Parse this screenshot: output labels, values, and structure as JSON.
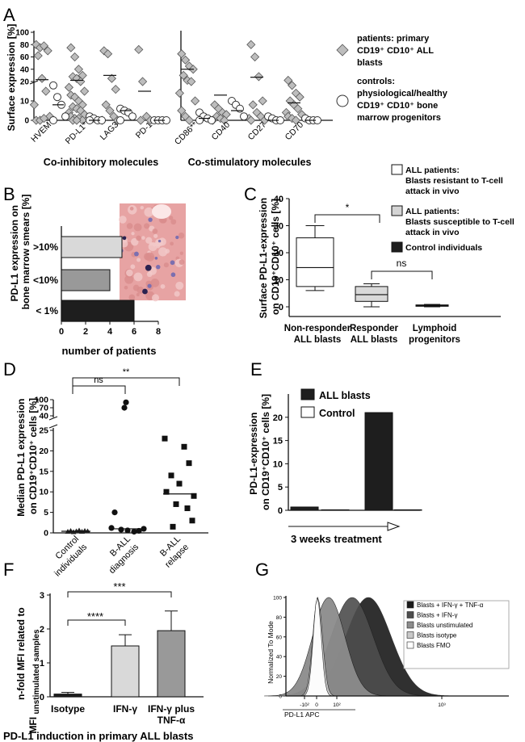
{
  "colors": {
    "dark": "#1e1e1e",
    "mid": "#999999",
    "light": "#d9d9d9",
    "white": "#ffffff",
    "diamond": "#bdbdbd"
  },
  "panels": {
    "A": "A",
    "B": "B",
    "C": "C",
    "D": "D",
    "E": "E",
    "F": "F",
    "G": "G"
  },
  "chart_data": [
    {
      "id": "A",
      "type": "scatter",
      "ylabel": "Surface expression [%]",
      "yticks": [
        "0",
        "10",
        "20",
        "40",
        "60",
        "80",
        "100"
      ],
      "categories": [
        "HVEM",
        "PD-L1*",
        "LAG3",
        "PD-1",
        "CD86**",
        "CD40",
        "CD27",
        "CD70"
      ],
      "groups": [
        "Co-inhibitory molecules",
        "Co-stimulatory molecules"
      ],
      "legend": [
        {
          "marker": "diamond",
          "lines": [
            "patients: primary",
            "CD19⁺ CD10⁺ ALL",
            "blasts"
          ]
        },
        {
          "marker": "circle",
          "lines": [
            "controls:",
            "physiological/healthy",
            "CD19⁺ CD10⁺ bone",
            "marrow progenitors"
          ]
        }
      ],
      "series": [
        {
          "name": "patients",
          "points": [
            [
              0,
              80
            ],
            [
              0,
              75
            ],
            [
              0,
              78
            ],
            [
              0,
              70
            ],
            [
              0,
              62
            ],
            [
              0,
              25
            ],
            [
              0,
              15
            ],
            [
              0,
              8
            ],
            [
              0,
              2
            ],
            [
              0,
              0
            ],
            [
              0,
              0
            ],
            [
              0,
              1
            ],
            [
              1,
              75
            ],
            [
              1,
              60
            ],
            [
              1,
              40
            ],
            [
              1,
              30
            ],
            [
              1,
              28
            ],
            [
              1,
              25
            ],
            [
              1,
              20
            ],
            [
              1,
              17
            ],
            [
              1,
              15
            ],
            [
              1,
              13
            ],
            [
              1,
              12
            ],
            [
              1,
              10
            ],
            [
              1,
              8
            ],
            [
              1,
              7
            ],
            [
              1,
              6
            ],
            [
              1,
              5
            ],
            [
              1,
              4
            ],
            [
              1,
              3
            ],
            [
              1,
              2
            ],
            [
              1,
              1
            ],
            [
              1,
              1
            ],
            [
              1,
              0
            ],
            [
              1,
              0
            ],
            [
              1,
              0
            ],
            [
              2,
              70
            ],
            [
              2,
              65
            ],
            [
              2,
              25
            ],
            [
              2,
              16
            ],
            [
              2,
              8
            ],
            [
              2,
              5
            ],
            [
              2,
              2
            ],
            [
              2,
              0
            ],
            [
              2,
              0
            ],
            [
              3,
              72
            ],
            [
              3,
              20
            ],
            [
              3,
              2
            ],
            [
              3,
              0
            ],
            [
              3,
              0
            ],
            [
              4,
              65
            ],
            [
              4,
              55
            ],
            [
              4,
              45
            ],
            [
              4,
              40
            ],
            [
              4,
              30
            ],
            [
              4,
              22
            ],
            [
              4,
              20
            ],
            [
              4,
              14
            ],
            [
              4,
              10
            ],
            [
              4,
              5
            ],
            [
              4,
              2
            ],
            [
              4,
              0
            ],
            [
              5,
              8
            ],
            [
              5,
              6
            ],
            [
              5,
              4
            ],
            [
              5,
              3
            ],
            [
              5,
              2
            ],
            [
              5,
              1
            ],
            [
              5,
              0
            ],
            [
              5,
              0
            ],
            [
              6,
              80
            ],
            [
              6,
              60
            ],
            [
              6,
              28
            ],
            [
              6,
              10
            ],
            [
              6,
              8
            ],
            [
              6,
              4
            ],
            [
              6,
              2
            ],
            [
              6,
              1
            ],
            [
              6,
              0
            ],
            [
              6,
              0
            ],
            [
              7,
              22
            ],
            [
              7,
              18
            ],
            [
              7,
              14
            ],
            [
              7,
              12
            ],
            [
              7,
              10
            ],
            [
              7,
              8
            ],
            [
              7,
              6
            ],
            [
              7,
              4
            ],
            [
              7,
              3
            ],
            [
              7,
              2
            ],
            [
              7,
              1
            ],
            [
              7,
              0
            ]
          ]
        },
        {
          "name": "controls",
          "points": [
            [
              0,
              18
            ],
            [
              0,
              12
            ],
            [
              0,
              8
            ],
            [
              0,
              2
            ],
            [
              0,
              0
            ],
            [
              1,
              2
            ],
            [
              1,
              1
            ],
            [
              1,
              0
            ],
            [
              1,
              0
            ],
            [
              1,
              0
            ],
            [
              2,
              6
            ],
            [
              2,
              5
            ],
            [
              2,
              4
            ],
            [
              2,
              2
            ],
            [
              2,
              0
            ],
            [
              3,
              0
            ],
            [
              3,
              0
            ],
            [
              3,
              0
            ],
            [
              3,
              0
            ],
            [
              4,
              4
            ],
            [
              4,
              2
            ],
            [
              4,
              1
            ],
            [
              4,
              0
            ],
            [
              4,
              0
            ],
            [
              5,
              10
            ],
            [
              5,
              8
            ],
            [
              5,
              6
            ],
            [
              5,
              2
            ],
            [
              6,
              2
            ],
            [
              6,
              1
            ],
            [
              6,
              0
            ],
            [
              6,
              0
            ],
            [
              7,
              1
            ],
            [
              7,
              0
            ],
            [
              7,
              0
            ],
            [
              7,
              0
            ]
          ]
        }
      ],
      "medians": {
        "patients": [
          23,
          22,
          30,
          15,
          40,
          13,
          27,
          9
        ],
        "controls": [
          8,
          0,
          5,
          0,
          1,
          5,
          0,
          0
        ]
      }
    },
    {
      "id": "B",
      "type": "bar",
      "orientation": "horizontal",
      "ylabel": "PD-L1 expression on bone marrow smears [%]",
      "xlabel": "number of patients",
      "categories": [
        ">10%",
        "<10%",
        "< 1%"
      ],
      "values": [
        5,
        4,
        6
      ],
      "xticks": [
        "0",
        "2",
        "4",
        "6",
        "8"
      ],
      "xlim": [
        0,
        8
      ]
    },
    {
      "id": "C",
      "type": "box",
      "ylabel": "Surface PD-L1-expression on CD19⁺CD10⁺ cells [%]",
      "yticks": [
        "0",
        "10",
        "20",
        "30",
        "40"
      ],
      "ylim": [
        -3,
        40
      ],
      "categories": [
        [
          "Non-responder",
          "ALL blasts"
        ],
        [
          "Responder",
          "ALL blasts"
        ],
        [
          "Lymphoid",
          "progenitors"
        ]
      ],
      "boxes": [
        {
          "min": 6,
          "q1": 7.5,
          "median": 14.5,
          "q3": 25.5,
          "max": 30
        },
        {
          "min": 0,
          "q1": 2,
          "median": 4.5,
          "q3": 7.5,
          "max": 8.5
        },
        {
          "min": 0,
          "q1": 0.2,
          "median": 0.4,
          "q3": 0.7,
          "max": 0.9
        }
      ],
      "sig": [
        {
          "label": "*"
        },
        {
          "label": "ns"
        }
      ],
      "legend": [
        {
          "lines": [
            "ALL patients:",
            "Blasts resistant to T-cell",
            "attack in vivo"
          ]
        },
        {
          "lines": [
            "ALL patients:",
            "Blasts susceptible to T-cell",
            "attack in vivo"
          ]
        },
        {
          "lines": [
            "Control individuals"
          ]
        }
      ]
    },
    {
      "id": "D",
      "type": "scatter",
      "ylabel": "Median PD-L1 expression on CD19⁺CD10⁺ cells [%]",
      "yticks": [
        "0",
        "5",
        "10",
        "15",
        "20",
        "25",
        "40",
        "70",
        "100"
      ],
      "categories": [
        [
          "Control",
          "individuals"
        ],
        [
          "B-ALL",
          "diagnosis"
        ],
        [
          "B-ALL",
          "relapse"
        ]
      ],
      "series": [
        {
          "name": "control",
          "marker": "triangle",
          "values": [
            0.3,
            0.5,
            0.2,
            0.4,
            0.6,
            0.3,
            0.5,
            0.4
          ]
        },
        {
          "name": "diagnosis",
          "marker": "circle",
          "values": [
            90,
            70,
            5,
            1.2,
            0.8,
            0.6,
            0.3,
            0.5,
            1.0
          ]
        },
        {
          "name": "relapse",
          "marker": "square",
          "values": [
            23,
            21,
            17,
            14,
            12,
            10,
            9,
            7,
            6,
            3,
            1.5
          ]
        }
      ],
      "medians": [
        0.4,
        1.0,
        9.5
      ],
      "sig": [
        {
          "label": "ns"
        },
        {
          "label": "**"
        }
      ]
    },
    {
      "id": "E",
      "type": "bar",
      "ylabel": "PD-L1-expression on CD19⁺CD10⁺ cells [%]",
      "xlabel": "3 weeks treatment",
      "yticks": [
        "0",
        "5",
        "10",
        "15",
        "20"
      ],
      "ylim": [
        0,
        25
      ],
      "series": [
        {
          "name": "ALL blasts",
          "values": [
            0.7,
            21
          ]
        },
        {
          "name": "Control",
          "values": [
            0.1,
            0.1
          ]
        }
      ]
    },
    {
      "id": "F",
      "type": "bar",
      "ylabel": "n-fold MFI related to MFI unstimulated samples",
      "ylabel_sub": "unstimulated samples",
      "ylabel_main": "n-fold MFI related to",
      "ylabel_mfi": "MFI",
      "caption": "PD-L1 induction in primary ALL blasts",
      "yticks": [
        "0",
        "1",
        "2",
        "3"
      ],
      "ylim": [
        0,
        3
      ],
      "categories": [
        [
          "Isotype"
        ],
        [
          "IFN-γ"
        ],
        [
          "IFN-γ plus",
          "TNF-α"
        ]
      ],
      "values": [
        0.08,
        1.5,
        1.95
      ],
      "errors": [
        0.05,
        0.33,
        0.58
      ],
      "sig": [
        {
          "label": "****"
        },
        {
          "label": "***"
        }
      ]
    },
    {
      "id": "G",
      "type": "area",
      "ylabel": "Normalized To Mode",
      "xlabel": "PD-L1 APC",
      "yticks": [
        "0",
        "20",
        "40",
        "60",
        "80",
        "100"
      ],
      "xticks": [
        "-10²",
        "0",
        "10²",
        "10³"
      ],
      "series": [
        {
          "name": "Blasts + IFN-γ + TNF-α",
          "peak": 200
        },
        {
          "name": "Blasts + IFN-γ",
          "peak": 140
        },
        {
          "name": "Blasts unstimulated",
          "peak": 60
        },
        {
          "name": "Blasts isotype",
          "peak": 5
        },
        {
          "name": "Blasts FMO",
          "peak": 3
        }
      ]
    }
  ]
}
